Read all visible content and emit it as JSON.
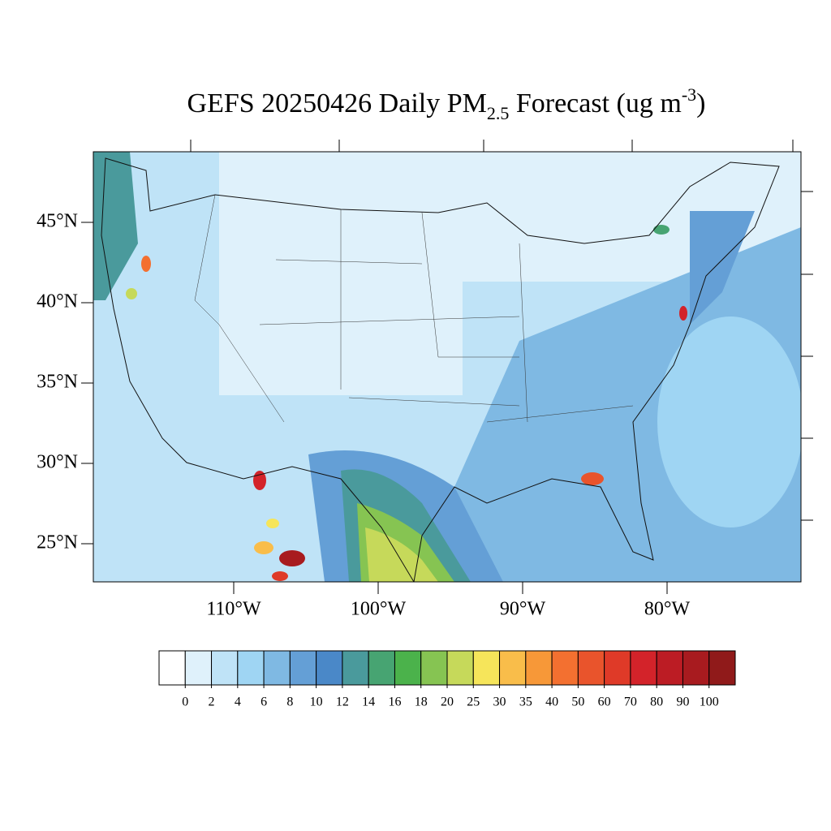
{
  "title": {
    "parts": [
      "GEFS 20250426 Daily PM",
      "2.5",
      " Forecast (ug m",
      "-3",
      ")"
    ]
  },
  "lat_ticks": [
    {
      "value": 45,
      "label": "45°N"
    },
    {
      "value": 40,
      "label": "40°N"
    },
    {
      "value": 35,
      "label": "35°N"
    },
    {
      "value": 30,
      "label": "30°N"
    },
    {
      "value": 25,
      "label": "25°N"
    }
  ],
  "lon_ticks": [
    {
      "value": -110,
      "label": "110°W"
    },
    {
      "value": -100,
      "label": "100°W"
    },
    {
      "value": -90,
      "label": "90°W"
    },
    {
      "value": -80,
      "label": "80°W"
    }
  ],
  "colorbar": {
    "levels": [
      0,
      2,
      4,
      6,
      8,
      10,
      12,
      14,
      16,
      18,
      20,
      25,
      30,
      35,
      40,
      50,
      60,
      70,
      80,
      90,
      100
    ],
    "colors": [
      "#ffffff",
      "#dff1fb",
      "#bfe3f7",
      "#9fd5f3",
      "#7fb9e3",
      "#649fd6",
      "#4a88c8",
      "#4a9a9c",
      "#47a472",
      "#4bb24b",
      "#86c452",
      "#c6d95a",
      "#f6e55a",
      "#f9bd4a",
      "#f79838",
      "#f37030",
      "#e9542c",
      "#df3a28",
      "#d3232a",
      "#bc1c24",
      "#a81b1f",
      "#901a1a"
    ]
  }
}
